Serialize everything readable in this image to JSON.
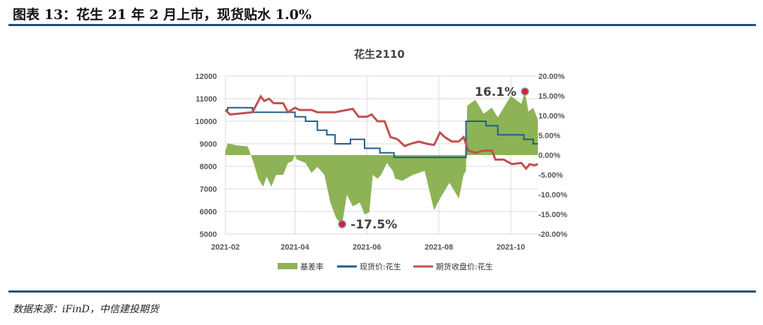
{
  "header": {
    "title": "图表 13：花生 21 年 2 月上市，现货贴水 1.0%"
  },
  "footer": {
    "source": "数据来源：iFinD，中信建投期货"
  },
  "chart_data": {
    "type": "line",
    "title": "花生2110",
    "x_ticks": [
      "2021-02",
      "2021-04",
      "2021-06",
      "2021-08",
      "2021-10"
    ],
    "xlim": [
      "2021-02-01",
      "2021-10-24"
    ],
    "y_left": {
      "ylim": [
        5000,
        12000
      ],
      "ticks": [
        "5000",
        "6000",
        "7000",
        "8000",
        "9000",
        "10000",
        "11000",
        "12000"
      ]
    },
    "y_right": {
      "ylim": [
        -20,
        20
      ],
      "ticks": [
        "-20.00%",
        "-15.00%",
        "-10.00%",
        "-5.00%",
        "0.00%",
        "5.00%",
        "10.00%",
        "15.00%",
        "20.00%"
      ]
    },
    "grid": true,
    "legend": "bottom",
    "colors": {
      "basis": "#8db356",
      "spot": "#1f5c8a",
      "futures": "#c0504d"
    },
    "annotations": [
      {
        "text": "16.1%",
        "x": "2021-10-13",
        "y": 16.1
      },
      {
        "text": "-17.5%",
        "x": "2021-05-11",
        "y": -17.5
      }
    ],
    "series": [
      {
        "name": "基差率",
        "type": "area",
        "axis": "right",
        "points": [
          [
            "2021-02-01",
            1
          ],
          [
            "2021-02-03",
            3
          ],
          [
            "2021-02-10",
            2.5
          ],
          [
            "2021-02-20",
            2.2
          ],
          [
            "2021-02-25",
            -2
          ],
          [
            "2021-03-01",
            -6
          ],
          [
            "2021-03-05",
            -8
          ],
          [
            "2021-03-08",
            -5.5
          ],
          [
            "2021-03-12",
            -8
          ],
          [
            "2021-03-16",
            -5
          ],
          [
            "2021-03-22",
            -5
          ],
          [
            "2021-03-26",
            -2
          ],
          [
            "2021-03-30",
            -1.5
          ],
          [
            "2021-04-01",
            0.3
          ],
          [
            "2021-04-02",
            -1
          ],
          [
            "2021-04-10",
            -2
          ],
          [
            "2021-04-15",
            -4.5
          ],
          [
            "2021-04-20",
            -3
          ],
          [
            "2021-04-26",
            -5
          ],
          [
            "2021-05-01",
            -12
          ],
          [
            "2021-05-06",
            -16
          ],
          [
            "2021-05-11",
            -17.5
          ],
          [
            "2021-05-15",
            -10
          ],
          [
            "2021-05-20",
            -13
          ],
          [
            "2021-05-26",
            -12
          ],
          [
            "2021-05-30",
            -15
          ],
          [
            "2021-06-03",
            -14.5
          ],
          [
            "2021-06-06",
            -5
          ],
          [
            "2021-06-10",
            -6
          ],
          [
            "2021-06-13",
            -5
          ],
          [
            "2021-06-18",
            -2
          ],
          [
            "2021-06-23",
            -4
          ],
          [
            "2021-06-25",
            -6
          ],
          [
            "2021-07-01",
            -6.5
          ],
          [
            "2021-07-10",
            -5
          ],
          [
            "2021-07-20",
            -4
          ],
          [
            "2021-07-24",
            -9
          ],
          [
            "2021-07-28",
            -14
          ],
          [
            "2021-08-02",
            -11
          ],
          [
            "2021-08-10",
            -7
          ],
          [
            "2021-08-18",
            -11
          ],
          [
            "2021-08-22",
            -5
          ],
          [
            "2021-08-24",
            -4
          ],
          [
            "2021-08-25",
            12.5
          ],
          [
            "2021-09-01",
            14
          ],
          [
            "2021-09-08",
            10.5
          ],
          [
            "2021-09-15",
            12
          ],
          [
            "2021-09-20",
            9.5
          ],
          [
            "2021-09-25",
            12
          ],
          [
            "2021-10-01",
            15
          ],
          [
            "2021-10-10",
            13
          ],
          [
            "2021-10-13",
            16.1
          ],
          [
            "2021-10-16",
            11
          ],
          [
            "2021-10-20",
            12
          ],
          [
            "2021-10-24",
            9
          ]
        ]
      },
      {
        "name": "现货价:花生",
        "type": "step",
        "axis": "left",
        "points": [
          [
            "2021-02-01",
            10500
          ],
          [
            "2021-02-03",
            10600
          ],
          [
            "2021-02-24",
            10400
          ],
          [
            "2021-04-01",
            10200
          ],
          [
            "2021-04-10",
            10000
          ],
          [
            "2021-04-20",
            9600
          ],
          [
            "2021-04-28",
            9400
          ],
          [
            "2021-05-05",
            9000
          ],
          [
            "2021-05-18",
            9200
          ],
          [
            "2021-05-30",
            8800
          ],
          [
            "2021-06-12",
            8600
          ],
          [
            "2021-06-24",
            8400
          ],
          [
            "2021-08-24",
            10000
          ],
          [
            "2021-09-10",
            9800
          ],
          [
            "2021-09-20",
            9400
          ],
          [
            "2021-10-12",
            9200
          ],
          [
            "2021-10-20",
            9000
          ],
          [
            "2021-10-24",
            9000
          ]
        ]
      },
      {
        "name": "期货收盘价:花生",
        "type": "line",
        "axis": "left",
        "points": [
          [
            "2021-02-01",
            10500
          ],
          [
            "2021-02-05",
            10300
          ],
          [
            "2021-02-15",
            10350
          ],
          [
            "2021-02-24",
            10400
          ],
          [
            "2021-02-27",
            10700
          ],
          [
            "2021-03-03",
            11100
          ],
          [
            "2021-03-06",
            10900
          ],
          [
            "2021-03-10",
            11000
          ],
          [
            "2021-03-14",
            10800
          ],
          [
            "2021-03-22",
            10800
          ],
          [
            "2021-03-26",
            10400
          ],
          [
            "2021-04-01",
            10600
          ],
          [
            "2021-04-05",
            10500
          ],
          [
            "2021-04-15",
            10500
          ],
          [
            "2021-04-20",
            10400
          ],
          [
            "2021-05-05",
            10400
          ],
          [
            "2021-05-15",
            10500
          ],
          [
            "2021-05-20",
            10550
          ],
          [
            "2021-05-25",
            10200
          ],
          [
            "2021-06-01",
            10200
          ],
          [
            "2021-06-05",
            10300
          ],
          [
            "2021-06-10",
            10000
          ],
          [
            "2021-06-16",
            10000
          ],
          [
            "2021-06-21",
            9300
          ],
          [
            "2021-06-27",
            9200
          ],
          [
            "2021-07-03",
            8900
          ],
          [
            "2021-07-08",
            9000
          ],
          [
            "2021-07-15",
            9100
          ],
          [
            "2021-07-22",
            9000
          ],
          [
            "2021-07-28",
            8950
          ],
          [
            "2021-08-02",
            9500
          ],
          [
            "2021-08-06",
            9300
          ],
          [
            "2021-08-12",
            9100
          ],
          [
            "2021-08-18",
            9100
          ],
          [
            "2021-08-22",
            9300
          ],
          [
            "2021-08-24",
            9000
          ],
          [
            "2021-08-26",
            8700
          ],
          [
            "2021-09-01",
            8600
          ],
          [
            "2021-09-08",
            8700
          ],
          [
            "2021-09-15",
            8700
          ],
          [
            "2021-09-18",
            8300
          ],
          [
            "2021-09-25",
            8300
          ],
          [
            "2021-10-02",
            8100
          ],
          [
            "2021-10-10",
            8150
          ],
          [
            "2021-10-14",
            7900
          ],
          [
            "2021-10-17",
            8100
          ],
          [
            "2021-10-21",
            8050
          ],
          [
            "2021-10-24",
            8100
          ]
        ]
      }
    ]
  }
}
